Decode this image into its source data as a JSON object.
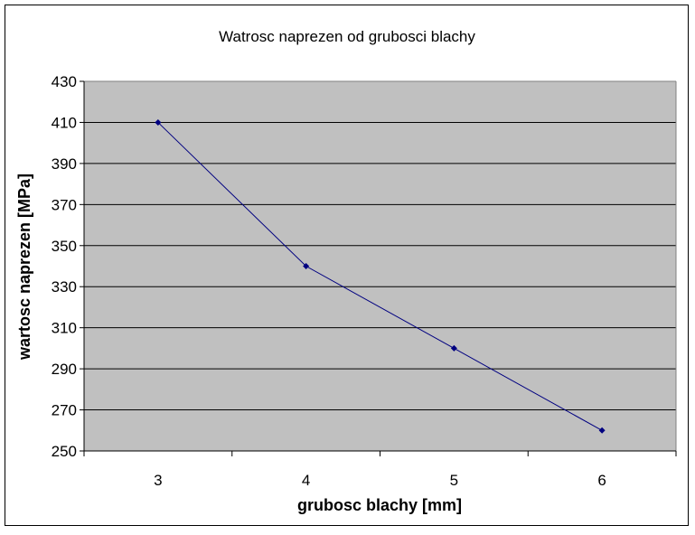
{
  "chart_data": {
    "type": "line",
    "title": "Watrosc naprezen od grubosci blachy",
    "xlabel": "grubosc blachy [mm]",
    "ylabel": "wartosc naprezen [MPa]",
    "categories": [
      "3",
      "4",
      "5",
      "6"
    ],
    "series": [
      {
        "values": [
          410,
          340,
          300,
          260
        ]
      }
    ],
    "ylim": [
      250,
      430
    ],
    "yticks": [
      250,
      270,
      290,
      310,
      330,
      350,
      370,
      390,
      410,
      430
    ],
    "grid": "horizontal",
    "plot_background": "#c0c0c0",
    "line_color": "#000080"
  }
}
